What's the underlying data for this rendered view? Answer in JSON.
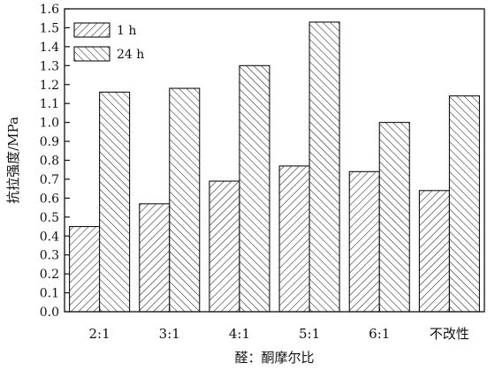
{
  "chart_data": {
    "type": "bar",
    "title": "",
    "xlabel": "醛：酮摩尔比",
    "ylabel": "抗拉强度/MPa",
    "categories": [
      "2:1",
      "3:1",
      "4:1",
      "5:1",
      "6:1",
      "不改性"
    ],
    "series": [
      {
        "name": "1 h",
        "values": [
          0.45,
          0.57,
          0.69,
          0.77,
          0.74,
          0.64
        ],
        "pattern": "backslash-hatch"
      },
      {
        "name": "24 h",
        "values": [
          1.16,
          1.18,
          1.3,
          1.53,
          1.0,
          1.14
        ],
        "pattern": "slash-hatch"
      }
    ],
    "ylim": [
      0,
      1.6
    ],
    "yticks": [
      "0.0",
      "0.1",
      "0.2",
      "0.3",
      "0.4",
      "0.5",
      "0.6",
      "0.7",
      "0.8",
      "0.9",
      "1.0",
      "1.1",
      "1.2",
      "1.3",
      "1.4",
      "1.5",
      "1.6"
    ],
    "grid": false,
    "legend_position": "top-left",
    "colors": {
      "bar_fill": "#ffffff",
      "stroke": "#111111",
      "hatch": "#222222"
    }
  }
}
